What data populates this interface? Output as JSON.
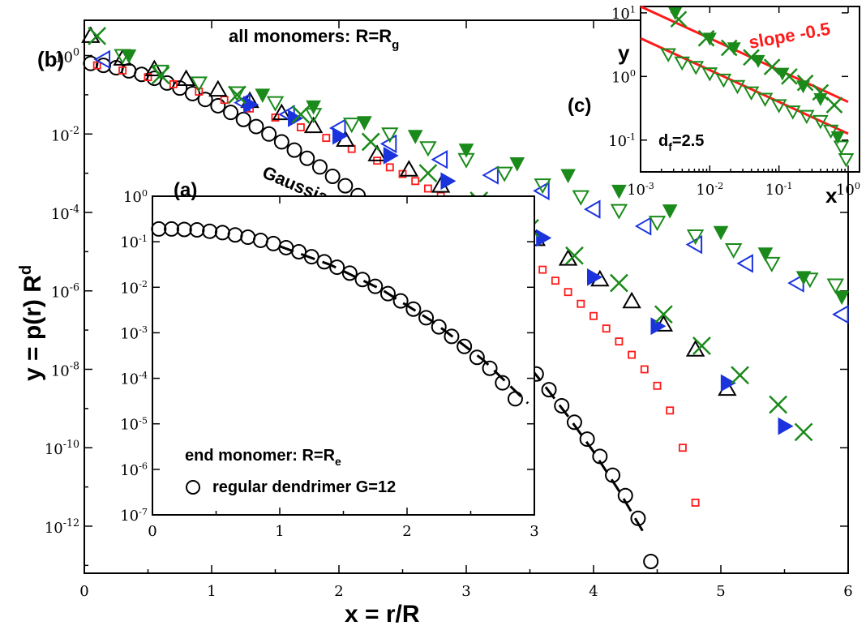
{
  "colors": {
    "black": "#000000",
    "red": "#ff1a1a",
    "blue": "#1a33dd",
    "green": "#1a8a1a",
    "greenDark": "#1b7a1b"
  },
  "labels": {
    "panel_b": "(b)",
    "panel_a": "(a)",
    "panel_c": "(c)",
    "all_monomers_prefix": "all monomers: R=R",
    "all_monomers_sub": "g",
    "gaussian": "Gaussian",
    "end_monomer_prefix": "end monomer: R=R",
    "end_monomer_sub": "e",
    "regular_dendrimer": "regular dendrimer G=12",
    "slope": "slope -0.5",
    "df_prefix": "d",
    "df_sub": "f",
    "df_suffix": "=2.5",
    "ylabel_main_prefix": "y = p(r) R",
    "ylabel_main_sup": "d",
    "xlabel_main": "x = r/R",
    "ylabel_c": "y",
    "xlabel_c": "x"
  },
  "chart_data": [
    {
      "id": "main",
      "type": "scatter",
      "title": "all monomers: R=Rg",
      "xlabel": "x = r/R",
      "ylabel": "y = p(r) R^d",
      "xlim": [
        0,
        6
      ],
      "ylim_log10": [
        -13.2,
        0.9
      ],
      "yscale": "log",
      "x_ticks": [
        0,
        1,
        2,
        3,
        4,
        5,
        6
      ],
      "x_tick_labels": [
        "0",
        "1",
        "2",
        "3",
        "4",
        "5",
        "6"
      ],
      "y_tick_exponents": [
        0,
        -2,
        -4,
        -6,
        -8,
        -10,
        -12
      ],
      "y_tick_labels": [
        "10",
        "10",
        "10",
        "10",
        "10",
        "10",
        "10"
      ],
      "y_tick_superscripts": [
        "0",
        "-2",
        "-4",
        "-6",
        "-8",
        "-10",
        "-12"
      ],
      "series": [
        {
          "name": "circles",
          "marker": "circle-open",
          "color": "#000000",
          "x": [
            0.05,
            0.15,
            0.25,
            0.35,
            0.45,
            0.55,
            0.65,
            0.75,
            0.85,
            0.95,
            1.05,
            1.15,
            1.25,
            1.35,
            1.45,
            1.55,
            1.65,
            1.75,
            1.85,
            1.95,
            2.05,
            2.15,
            2.25,
            2.35,
            2.45,
            2.55,
            2.65,
            2.75,
            2.85,
            2.95,
            3.05,
            3.15,
            3.25,
            3.35,
            3.45,
            3.55,
            3.65,
            3.75,
            3.85,
            3.95,
            4.05,
            4.15,
            4.25,
            4.35,
            4.45
          ],
          "log10y": [
            -0.2,
            -0.25,
            -0.31,
            -0.39,
            -0.48,
            -0.58,
            -0.7,
            -0.83,
            -0.97,
            -1.12,
            -1.28,
            -1.45,
            -1.63,
            -1.81,
            -2.0,
            -2.2,
            -2.41,
            -2.62,
            -2.84,
            -3.08,
            -3.32,
            -3.57,
            -3.83,
            -4.1,
            -4.38,
            -4.67,
            -4.97,
            -5.28,
            -5.6,
            -5.93,
            -6.27,
            -6.62,
            -6.98,
            -7.35,
            -7.73,
            -8.12,
            -8.52,
            -8.93,
            -9.35,
            -9.78,
            -10.22,
            -10.7,
            -11.22,
            -11.8,
            -12.9
          ]
        },
        {
          "name": "red-squares",
          "marker": "square-open",
          "color": "#ff1a1a",
          "x": [
            0.1,
            0.3,
            0.5,
            0.7,
            0.9,
            1.1,
            1.3,
            1.5,
            1.7,
            1.9,
            2.1,
            2.3,
            2.4,
            2.5,
            2.6,
            2.7,
            2.8,
            2.9,
            3.0,
            3.1,
            3.2,
            3.3,
            3.4,
            3.5,
            3.6,
            3.7,
            3.8,
            3.9,
            4.0,
            4.1,
            4.2,
            4.3,
            4.4,
            4.5,
            4.6,
            4.7,
            4.8
          ],
          "log10y": [
            -0.25,
            -0.38,
            -0.55,
            -0.73,
            -0.92,
            -1.13,
            -1.35,
            -1.58,
            -1.83,
            -2.1,
            -2.38,
            -2.68,
            -2.85,
            -3.02,
            -3.2,
            -3.39,
            -3.58,
            -3.78,
            -3.99,
            -4.21,
            -4.44,
            -4.68,
            -4.93,
            -5.19,
            -5.46,
            -5.74,
            -6.03,
            -6.33,
            -6.64,
            -6.96,
            -7.29,
            -7.63,
            -8.0,
            -8.42,
            -9.05,
            -10.0,
            -11.4
          ]
        },
        {
          "name": "black-triangles",
          "marker": "triangle-up-open",
          "color": "#000000",
          "x": [
            0.05,
            0.3,
            0.55,
            0.8,
            1.05,
            1.3,
            1.55,
            1.8,
            2.05,
            2.3,
            2.55,
            2.8,
            3.05,
            3.3,
            3.55,
            3.8,
            4.05,
            4.3,
            4.55,
            4.8,
            5.05
          ],
          "log10y": [
            0.5,
            -0.08,
            -0.35,
            -0.6,
            -0.87,
            -1.16,
            -1.47,
            -1.8,
            -2.15,
            -2.52,
            -2.91,
            -3.32,
            -3.75,
            -4.2,
            -4.68,
            -5.18,
            -5.71,
            -6.27,
            -6.86,
            -7.5,
            -8.5
          ]
        },
        {
          "name": "blue-filled-triangles",
          "marker": "triangle-right-filled",
          "color": "#1a33dd",
          "x": [
            1.3,
            1.65,
            2.0,
            2.4,
            2.85,
            3.25,
            3.6,
            4.0,
            4.5,
            5.05,
            5.5
          ],
          "log10y": [
            -1.25,
            -1.6,
            -2.05,
            -2.55,
            -3.2,
            -3.9,
            -4.65,
            -5.65,
            -6.9,
            -8.35,
            -9.45
          ]
        },
        {
          "name": "blue-open-triangles",
          "marker": "triangle-left-open",
          "color": "#1a33dd",
          "x": [
            0.15,
            1.25,
            1.6,
            2.0,
            2.4,
            2.8,
            3.2,
            3.6,
            4.0,
            4.4,
            4.8,
            5.2,
            5.6,
            5.95
          ],
          "log10y": [
            -0.1,
            -1.2,
            -1.5,
            -1.85,
            -2.25,
            -2.65,
            -3.05,
            -3.45,
            -3.92,
            -4.35,
            -4.82,
            -5.3,
            -5.8,
            -6.6
          ]
        },
        {
          "name": "green-x",
          "marker": "cross",
          "color": "#1a8a1a",
          "x": [
            0.1,
            0.6,
            1.2,
            1.7,
            2.25,
            2.7,
            3.1,
            3.5,
            3.85,
            4.2,
            4.55,
            4.85,
            5.15,
            5.45,
            5.65
          ],
          "log10y": [
            0.5,
            -0.5,
            -1.0,
            -1.5,
            -2.2,
            -3.0,
            -3.7,
            -4.4,
            -5.1,
            -5.8,
            -6.6,
            -7.4,
            -8.15,
            -8.9,
            -9.6
          ]
        },
        {
          "name": "green-filled-triangles",
          "marker": "triangle-down-filled",
          "color": "#1a8a1a",
          "x": [
            0.35,
            1.4,
            1.8,
            2.2,
            2.6,
            3.0,
            3.4,
            3.8,
            4.2,
            4.6,
            5.0,
            5.35,
            5.65,
            5.95
          ],
          "log10y": [
            0.0,
            -1.0,
            -1.3,
            -1.7,
            -2.05,
            -2.4,
            -2.75,
            -3.05,
            -3.45,
            -3.95,
            -4.5,
            -5.05,
            -5.65,
            -6.15
          ]
        },
        {
          "name": "green-open-triangles",
          "marker": "triangle-down-open",
          "color": "#1a8a1a",
          "x": [
            0.3,
            0.6,
            0.9,
            1.2,
            1.5,
            1.8,
            2.1,
            2.4,
            2.7,
            3.0,
            3.3,
            3.6,
            3.9,
            4.2,
            4.5,
            4.8,
            5.1,
            5.4,
            5.7,
            5.9
          ],
          "log10y": [
            0.0,
            -0.4,
            -0.7,
            -0.95,
            -1.2,
            -1.5,
            -1.75,
            -2.0,
            -2.35,
            -2.65,
            -3.0,
            -3.3,
            -3.6,
            -3.95,
            -4.25,
            -4.6,
            -4.95,
            -5.3,
            -5.7,
            -5.85
          ]
        }
      ],
      "gaussian_curve": {
        "x": [
          3.4,
          3.6,
          3.8,
          4.0,
          4.2,
          4.4
        ],
        "log10y": [
          -7.55,
          -8.35,
          -9.2,
          -10.1,
          -11.1,
          -12.2
        ]
      },
      "annotations": [
        "Gaussian"
      ]
    },
    {
      "id": "inset_a",
      "type": "scatter",
      "title": "(a)",
      "legend": [
        "end monomer: R=Re",
        "regular dendrimer G=12"
      ],
      "xlim": [
        0,
        3
      ],
      "ylim_log10": [
        -7,
        0
      ],
      "yscale": "log",
      "x_ticks": [
        0,
        1,
        2,
        3
      ],
      "x_tick_labels": [
        "0",
        "1",
        "2",
        "3"
      ],
      "y_tick_exponents": [
        0,
        -1,
        -2,
        -3,
        -4,
        -5,
        -6,
        -7
      ],
      "y_tick_labels": [
        "10",
        "10",
        "10",
        "10",
        "10",
        "10",
        "10",
        "10"
      ],
      "y_tick_superscripts": [
        "0",
        "-1",
        "-2",
        "-3",
        "-4",
        "-5",
        "-6",
        "-7"
      ],
      "series": [
        {
          "name": "regular dendrimer G=12",
          "marker": "circle-open",
          "color": "#000000",
          "x": [
            0.05,
            0.15,
            0.25,
            0.35,
            0.45,
            0.55,
            0.65,
            0.75,
            0.85,
            0.95,
            1.05,
            1.15,
            1.25,
            1.35,
            1.45,
            1.55,
            1.65,
            1.75,
            1.85,
            1.95,
            2.05,
            2.15,
            2.25,
            2.35,
            2.45,
            2.55,
            2.65,
            2.75,
            2.85
          ],
          "log10y": [
            -0.72,
            -0.72,
            -0.73,
            -0.74,
            -0.77,
            -0.8,
            -0.85,
            -0.9,
            -0.97,
            -1.04,
            -1.13,
            -1.22,
            -1.33,
            -1.44,
            -1.56,
            -1.69,
            -1.83,
            -1.98,
            -2.14,
            -2.3,
            -2.48,
            -2.67,
            -2.87,
            -3.08,
            -3.3,
            -3.54,
            -3.78,
            -4.1,
            -4.45
          ]
        }
      ],
      "gaussian_curve": {
        "x": [
          1.0,
          1.4,
          1.8,
          2.2,
          2.6,
          2.95
        ],
        "log10y": [
          -1.1,
          -1.51,
          -2.05,
          -2.75,
          -3.6,
          -4.55
        ]
      }
    },
    {
      "id": "inset_c",
      "type": "scatter",
      "title": "(c)",
      "xlabel": "x",
      "ylabel": "y",
      "xscale": "log",
      "yscale": "log",
      "xlim_log10": [
        -3,
        0
      ],
      "ylim_log10": [
        -1.5,
        1.1
      ],
      "x_ticks_log10": [
        -3,
        -2,
        -1,
        0
      ],
      "x_tick_superscripts": [
        "-3",
        "-2",
        "-1",
        "0"
      ],
      "y_ticks_log10": [
        -1,
        0,
        1
      ],
      "y_tick_superscripts": [
        "-1",
        "0",
        "1"
      ],
      "fit_lines": [
        {
          "label": "slope -0.5",
          "slope": -0.5,
          "x_log10": [
            -3,
            0
          ],
          "log10y": [
            1.1,
            -0.4
          ]
        },
        {
          "slope": -0.5,
          "x_log10": [
            -3,
            0
          ],
          "log10y": [
            0.6,
            -0.9
          ]
        }
      ],
      "series": [
        {
          "name": "green-x",
          "marker": "cross",
          "color": "#1a8a1a",
          "x_log10": [
            -2.45,
            -2.05,
            -1.72,
            -1.4,
            -1.1,
            -0.85,
            -0.62,
            -0.4,
            -0.2
          ],
          "log10y": [
            0.9,
            0.6,
            0.45,
            0.3,
            0.15,
            0.0,
            -0.1,
            -0.25,
            -0.45
          ]
        },
        {
          "name": "green-filled-triangles",
          "marker": "triangle-down-filled",
          "color": "#1a8a1a",
          "x_log10": [
            -2.5,
            -2.0,
            -1.65,
            -1.3,
            -0.95,
            -0.65,
            -0.4,
            -0.15
          ],
          "log10y": [
            1.0,
            0.6,
            0.45,
            0.25,
            0.05,
            -0.15,
            -0.35,
            -0.95
          ]
        },
        {
          "name": "green-open-triangles",
          "marker": "triangle-down-open",
          "color": "#1a8a1a",
          "x_log10": [
            -2.6,
            -2.4,
            -2.2,
            -2.0,
            -1.8,
            -1.6,
            -1.4,
            -1.2,
            -1.0,
            -0.8,
            -0.6,
            -0.4,
            -0.25,
            -0.1,
            -0.03
          ],
          "log10y": [
            0.35,
            0.22,
            0.15,
            0.05,
            -0.05,
            -0.15,
            -0.25,
            -0.35,
            -0.45,
            -0.55,
            -0.62,
            -0.7,
            -0.85,
            -1.1,
            -1.3
          ]
        }
      ]
    }
  ]
}
